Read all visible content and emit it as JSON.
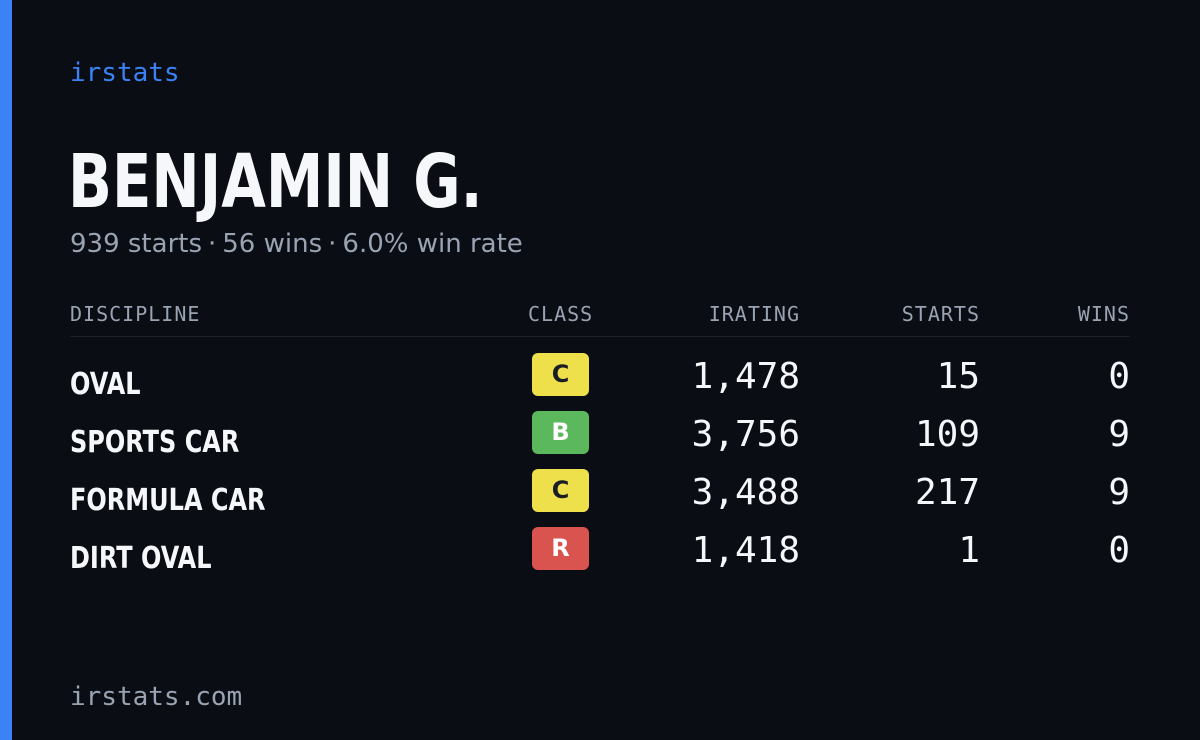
{
  "brand": "irstats",
  "driver": {
    "name": "BENJAMIN G.",
    "starts_text": "939 starts",
    "wins_text": "56 wins",
    "win_rate_text": "6.0% win rate",
    "separator": "·"
  },
  "table": {
    "headers": {
      "discipline": "DISCIPLINE",
      "class": "CLASS",
      "irating": "IRATING",
      "starts": "STARTS",
      "wins": "WINS"
    },
    "rows": [
      {
        "discipline": "OVAL",
        "class": "C",
        "class_color": "#ede04a",
        "class_text_color": "#1a1d24",
        "irating": "1,478",
        "starts": "15",
        "wins": "0"
      },
      {
        "discipline": "SPORTS CAR",
        "class": "B",
        "class_color": "#5cb85c",
        "class_text_color": "#ffffff",
        "irating": "3,756",
        "starts": "109",
        "wins": "9"
      },
      {
        "discipline": "FORMULA CAR",
        "class": "C",
        "class_color": "#ede04a",
        "class_text_color": "#1a1d24",
        "irating": "3,488",
        "starts": "217",
        "wins": "9"
      },
      {
        "discipline": "DIRT OVAL",
        "class": "R",
        "class_color": "#d9534f",
        "class_text_color": "#ffffff",
        "irating": "1,418",
        "starts": "1",
        "wins": "0"
      }
    ]
  },
  "footer": {
    "url": "irstats.com"
  },
  "colors": {
    "background": "#0a0d14",
    "accent": "#3b82f6",
    "muted_text": "#9aa3b2",
    "primary_text": "#f5f7fa"
  }
}
